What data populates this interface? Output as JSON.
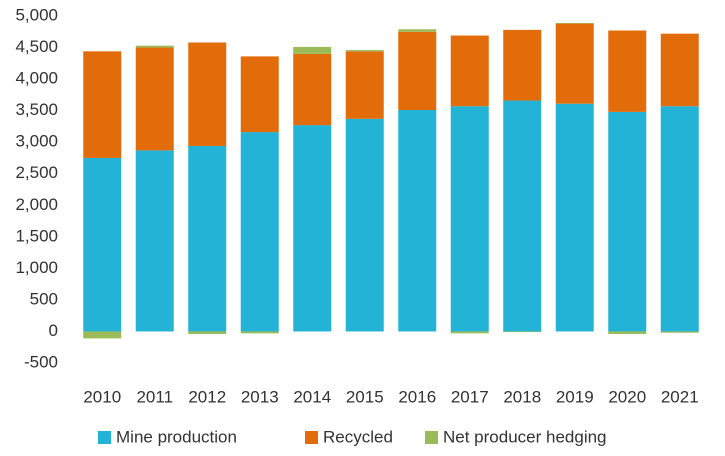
{
  "chart_data": {
    "type": "stacked_bar",
    "categories": [
      "2010",
      "2011",
      "2012",
      "2013",
      "2014",
      "2015",
      "2016",
      "2017",
      "2018",
      "2019",
      "2020",
      "2021"
    ],
    "series": [
      {
        "name": "Mine production",
        "color": "#22b3d6",
        "values": [
          2750,
          2870,
          2940,
          3160,
          3270,
          3370,
          3510,
          3570,
          3660,
          3610,
          3480,
          3570
        ]
      },
      {
        "name": "Recycled",
        "color": "#e36c0a",
        "values": [
          1690,
          1630,
          1640,
          1200,
          1130,
          1070,
          1240,
          1120,
          1120,
          1270,
          1290,
          1150
        ]
      },
      {
        "name": "Net producer hedging",
        "color": "#9bbb59",
        "values": [
          -110,
          30,
          -40,
          -30,
          110,
          20,
          40,
          -30,
          -10,
          10,
          -40,
          -20
        ]
      }
    ],
    "ylim": [
      -500,
      5000
    ],
    "yticks": [
      -500,
      0,
      500,
      {
        "value": 1000,
        "label": "1,000"
      },
      {
        "value": 1500,
        "label": "1,500"
      },
      {
        "value": 2000,
        "label": "2,000"
      },
      {
        "value": 2500,
        "label": "2,500"
      },
      {
        "value": 3000,
        "label": "3,000"
      },
      {
        "value": 3500,
        "label": "3,500"
      },
      {
        "value": 4000,
        "label": "4,000"
      },
      {
        "value": 4500,
        "label": "4,500"
      },
      {
        "value": 5000,
        "label": "5,000"
      }
    ],
    "grid": false,
    "legend": "bottom"
  }
}
